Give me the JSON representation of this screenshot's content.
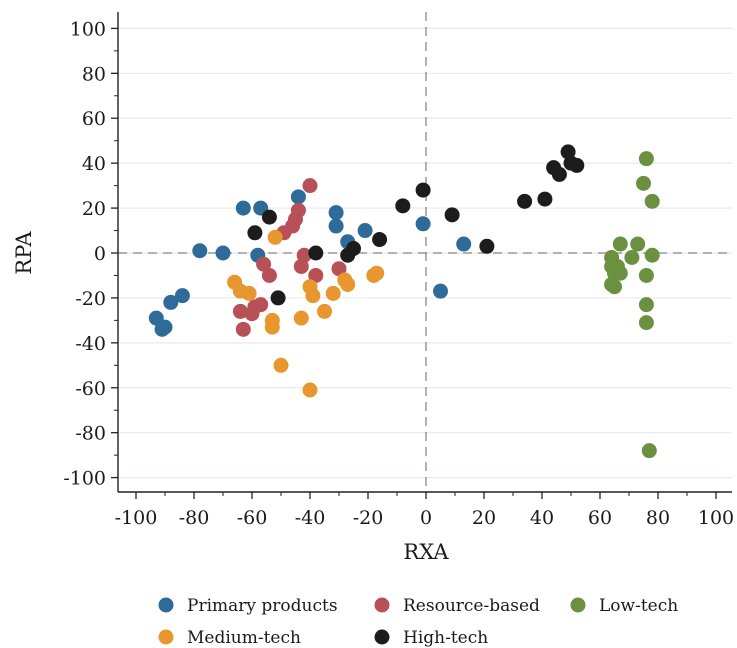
{
  "chart_data": {
    "type": "scatter",
    "xlabel": "RXA",
    "ylabel": "RPA",
    "xlim": [
      -100,
      100
    ],
    "ylim": [
      -100,
      100
    ],
    "xticks": [
      -100,
      -80,
      -60,
      -40,
      -20,
      0,
      20,
      40,
      60,
      80,
      100
    ],
    "yticks": [
      -100,
      -80,
      -60,
      -40,
      -20,
      0,
      20,
      40,
      60,
      80,
      100
    ],
    "grid": "horizontal",
    "reference_lines": {
      "x": 0,
      "y": 0,
      "style": "dashed"
    },
    "legend_position": "bottom",
    "series": [
      {
        "name": "Primary products",
        "color": "#2e6b99",
        "points": [
          [
            -93,
            -29
          ],
          [
            -91,
            -34
          ],
          [
            -90,
            -33
          ],
          [
            -88,
            -22
          ],
          [
            -84,
            -19
          ],
          [
            -78,
            1
          ],
          [
            -70,
            0
          ],
          [
            -63,
            20
          ],
          [
            -57,
            20
          ],
          [
            -58,
            -1
          ],
          [
            -44,
            25
          ],
          [
            -31,
            18
          ],
          [
            -31,
            12
          ],
          [
            -27,
            5
          ],
          [
            -21,
            10
          ],
          [
            -1,
            13
          ],
          [
            5,
            -17
          ],
          [
            13,
            4
          ]
        ]
      },
      {
        "name": "Resource-based",
        "color": "#b85058",
        "points": [
          [
            -64,
            -26
          ],
          [
            -63,
            -34
          ],
          [
            -60,
            -27
          ],
          [
            -59,
            -24
          ],
          [
            -57,
            -23
          ],
          [
            -56,
            -5
          ],
          [
            -54,
            -10
          ],
          [
            -49,
            9
          ],
          [
            -46,
            12
          ],
          [
            -45,
            15
          ],
          [
            -44,
            19
          ],
          [
            -43,
            -6
          ],
          [
            -42,
            -1
          ],
          [
            -40,
            30
          ],
          [
            -38,
            -10
          ],
          [
            -30,
            -7
          ]
        ]
      },
      {
        "name": "Low-tech",
        "color": "#6b9140",
        "points": [
          [
            64,
            -2
          ],
          [
            64,
            -6
          ],
          [
            64,
            -14
          ],
          [
            65,
            -9
          ],
          [
            65,
            -15
          ],
          [
            66,
            -6
          ],
          [
            67,
            -9
          ],
          [
            67,
            4
          ],
          [
            71,
            -2
          ],
          [
            73,
            4
          ],
          [
            75,
            31
          ],
          [
            76,
            -23
          ],
          [
            76,
            -31
          ],
          [
            76,
            -10
          ],
          [
            76,
            42
          ],
          [
            77,
            -88
          ],
          [
            78,
            23
          ],
          [
            78,
            -1
          ]
        ]
      },
      {
        "name": "Medium-tech",
        "color": "#e8962e",
        "points": [
          [
            -66,
            -13
          ],
          [
            -64,
            -17
          ],
          [
            -61,
            -18
          ],
          [
            -53,
            -30
          ],
          [
            -53,
            -33
          ],
          [
            -52,
            7
          ],
          [
            -50,
            -50
          ],
          [
            -43,
            -29
          ],
          [
            -40,
            -61
          ],
          [
            -40,
            -15
          ],
          [
            -39,
            -19
          ],
          [
            -35,
            -26
          ],
          [
            -32,
            -18
          ],
          [
            -28,
            -12
          ],
          [
            -27,
            -14
          ],
          [
            -18,
            -10
          ],
          [
            -17,
            -9
          ]
        ]
      },
      {
        "name": "High-tech",
        "color": "#1c1c1c",
        "points": [
          [
            -59,
            9
          ],
          [
            -54,
            16
          ],
          [
            -51,
            -20
          ],
          [
            -38,
            0
          ],
          [
            -27,
            -1
          ],
          [
            -25,
            2
          ],
          [
            -16,
            6
          ],
          [
            -8,
            21
          ],
          [
            -1,
            28
          ],
          [
            9,
            17
          ],
          [
            21,
            3
          ],
          [
            34,
            23
          ],
          [
            41,
            24
          ],
          [
            44,
            38
          ],
          [
            46,
            35
          ],
          [
            49,
            45
          ],
          [
            50,
            40
          ],
          [
            52,
            39
          ]
        ]
      }
    ]
  }
}
